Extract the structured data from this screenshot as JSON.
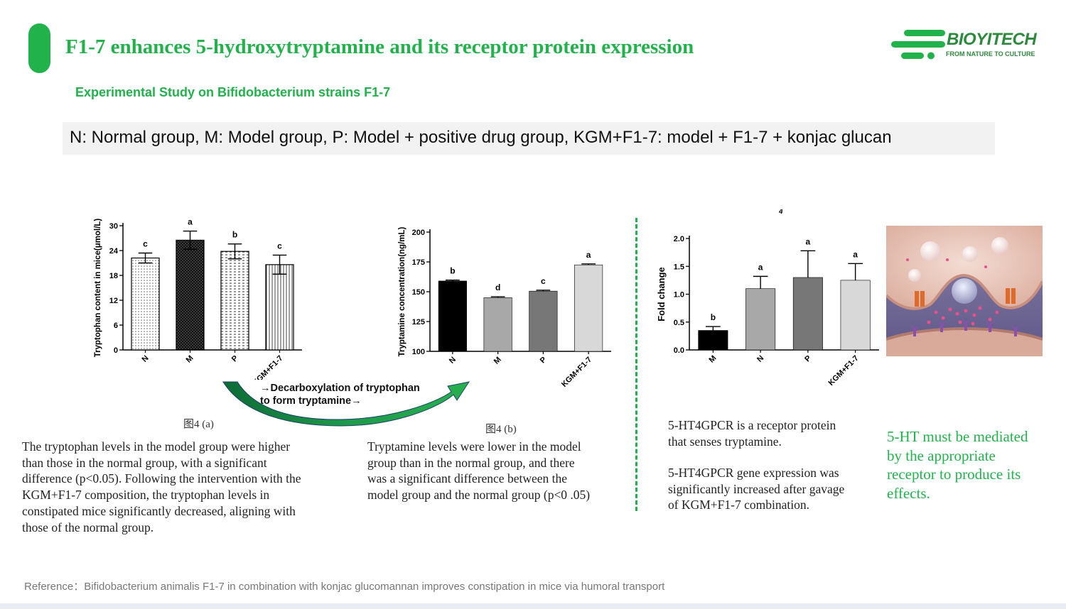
{
  "header": {
    "title": "F1-7 enhances 5-hydroxytryptamine and its receptor protein expression",
    "subtitle": "Experimental Study on Bifidobacterium strains F1-7",
    "legend": "N: Normal group, M: Model group, P: Model + positive drug group, KGM+F1-7: model + F1-7 + konjac glucan"
  },
  "logo": {
    "name": "BIOYITECH",
    "tagline": "FROM NATURE TO CULTURE",
    "color": "#22b24c"
  },
  "arrow": {
    "label_lines": [
      "→Decarboxylation of tryptophan",
      "to form tryptamine→"
    ]
  },
  "text": {
    "caption_a": "图4 (a)",
    "caption_b": "图4 (b)",
    "para_a_lines": [
      "The tryptophan levels in the model group were higher",
      "than those in the normal group, with a significant",
      "difference (p<0.05). Following the intervention with the",
      "KGM+F1-7 composition, the tryptophan levels in",
      "constipated mice significantly decreased, aligning with",
      "those of the normal group."
    ],
    "para_b_lines": [
      "Tryptamine levels were lower in the model",
      "group than in the normal group, and there",
      "was a significant difference between the",
      "model group and the normal group (p<0 .05)"
    ],
    "receptor_desc_lines": [
      "5-HT4GPCR is a receptor protein",
      "that senses tryptamine."
    ],
    "receptor_result_lines": [
      "5-HT4GPCR gene expression was",
      "significantly increased after gavage",
      "of KGM+F1-7 combination."
    ],
    "green_note_lines": [
      "5-HT must be mediated",
      "by the appropriate",
      "receptor to produce its",
      "effects."
    ],
    "reference": "Reference：Bifidobacterium animalis F1-7 in combination with konjac glucomannan improves constipation in mice via humoral transport"
  },
  "chart_data": [
    {
      "type": "bar",
      "title": "",
      "categories": [
        "N",
        "M",
        "P",
        "KGM+F1-7"
      ],
      "values": [
        22.2,
        26.5,
        23.8,
        20.6
      ],
      "errors": [
        1.2,
        2.2,
        1.8,
        2.3
      ],
      "sig_letters": [
        "c",
        "a",
        "b",
        "c"
      ],
      "fills": [
        "dots",
        "crosshatch",
        "dashes",
        "vlines"
      ],
      "ylabel": "Tryptophan content in mice(μmol/L)",
      "xlabel": "",
      "ylim": [
        0,
        30
      ],
      "yticks": [
        0,
        6,
        12,
        18,
        24,
        30
      ]
    },
    {
      "type": "bar",
      "title": "",
      "categories": [
        "N",
        "M",
        "P",
        "KGM+F1-7"
      ],
      "values": [
        159,
        145,
        150.5,
        172.5
      ],
      "errors": [
        0.8,
        0.8,
        0.8,
        0.8
      ],
      "sig_letters": [
        "b",
        "d",
        "c",
        "a"
      ],
      "colors": [
        "#000000",
        "#a8a8a8",
        "#777777",
        "#d8d8d8"
      ],
      "ylabel": "Tryptamine concentration(ng/mL)",
      "xlabel": "",
      "ylim": [
        100,
        200
      ],
      "yticks": [
        100,
        125,
        150,
        175,
        200
      ]
    },
    {
      "type": "bar",
      "title": "5-HT4GPCR",
      "categories": [
        "M",
        "N",
        "P",
        "KGM+F1-7"
      ],
      "values": [
        0.35,
        1.1,
        1.3,
        1.25
      ],
      "errors": [
        0.07,
        0.22,
        0.48,
        0.3
      ],
      "sig_letters": [
        "b",
        "a",
        "a",
        "a"
      ],
      "colors": [
        "#000000",
        "#a8a8a8",
        "#777777",
        "#d8d8d8"
      ],
      "ylabel": "Fold change",
      "xlabel": "",
      "ylim": [
        0,
        2.0
      ],
      "yticks": [
        0.0,
        0.5,
        1.0,
        1.5,
        2.0
      ]
    }
  ]
}
